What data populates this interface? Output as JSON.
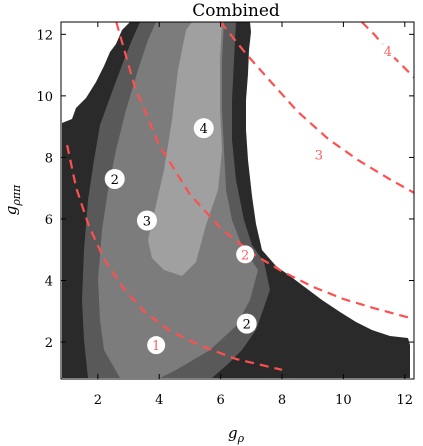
{
  "chart_data": {
    "type": "contour",
    "title": "Combined",
    "xlabel": "g",
    "xlabel_sub": "ρ",
    "ylabel": "g",
    "ylabel_sub": "ρππ",
    "xlim": [
      0.8,
      12.3
    ],
    "ylim": [
      0.8,
      12.4
    ],
    "x_ticks": [
      2,
      4,
      6,
      8,
      10,
      12
    ],
    "y_ticks": [
      2,
      4,
      6,
      8,
      10,
      12
    ],
    "grid": false,
    "colors": {
      "level1": "#2a2a2a",
      "level2": "#595959",
      "level3": "#7c7c7c",
      "level4": "#a0a0a0",
      "dashed_curve": "#ff5050",
      "background": "#ffffff"
    },
    "contour_labels": [
      {
        "text": "2",
        "x": 2.55,
        "y": 7.3
      },
      {
        "text": "3",
        "x": 3.6,
        "y": 5.95
      },
      {
        "text": "4",
        "x": 5.45,
        "y": 8.95
      },
      {
        "text": "2",
        "x": 6.85,
        "y": 2.6
      }
    ],
    "dashed_curves": [
      {
        "name": "1",
        "label_x": 3.9,
        "label_y": 1.9,
        "points": [
          [
            1.0,
            8.4
          ],
          [
            1.3,
            7.0
          ],
          [
            1.7,
            5.8
          ],
          [
            2.2,
            4.7
          ],
          [
            2.8,
            3.8
          ],
          [
            3.5,
            3.0
          ],
          [
            4.3,
            2.4
          ],
          [
            5.3,
            1.9
          ],
          [
            6.5,
            1.45
          ],
          [
            8.0,
            1.1
          ]
        ]
      },
      {
        "name": "2",
        "label_x": 6.8,
        "label_y": 4.85,
        "points": [
          [
            2.6,
            12.4
          ],
          [
            3.2,
            10.3
          ],
          [
            4.0,
            8.4
          ],
          [
            5.0,
            6.8
          ],
          [
            6.0,
            5.7
          ],
          [
            7.0,
            4.9
          ],
          [
            8.0,
            4.3
          ],
          [
            9.0,
            3.8
          ],
          [
            10.0,
            3.4
          ],
          [
            11.0,
            3.1
          ],
          [
            12.3,
            2.75
          ]
        ]
      },
      {
        "name": "3",
        "label_x": 9.2,
        "label_y": 8.1,
        "points": [
          [
            6.0,
            12.4
          ],
          [
            6.8,
            11.4
          ],
          [
            7.6,
            10.5
          ],
          [
            8.5,
            9.5
          ],
          [
            9.5,
            8.6
          ],
          [
            10.5,
            7.9
          ],
          [
            11.5,
            7.3
          ],
          [
            12.3,
            6.85
          ]
        ]
      },
      {
        "name": "4",
        "label_x": 11.45,
        "label_y": 11.45,
        "points": [
          [
            10.6,
            12.4
          ],
          [
            11.0,
            12.0
          ],
          [
            11.6,
            11.3
          ],
          [
            12.3,
            10.6
          ]
        ]
      }
    ]
  }
}
